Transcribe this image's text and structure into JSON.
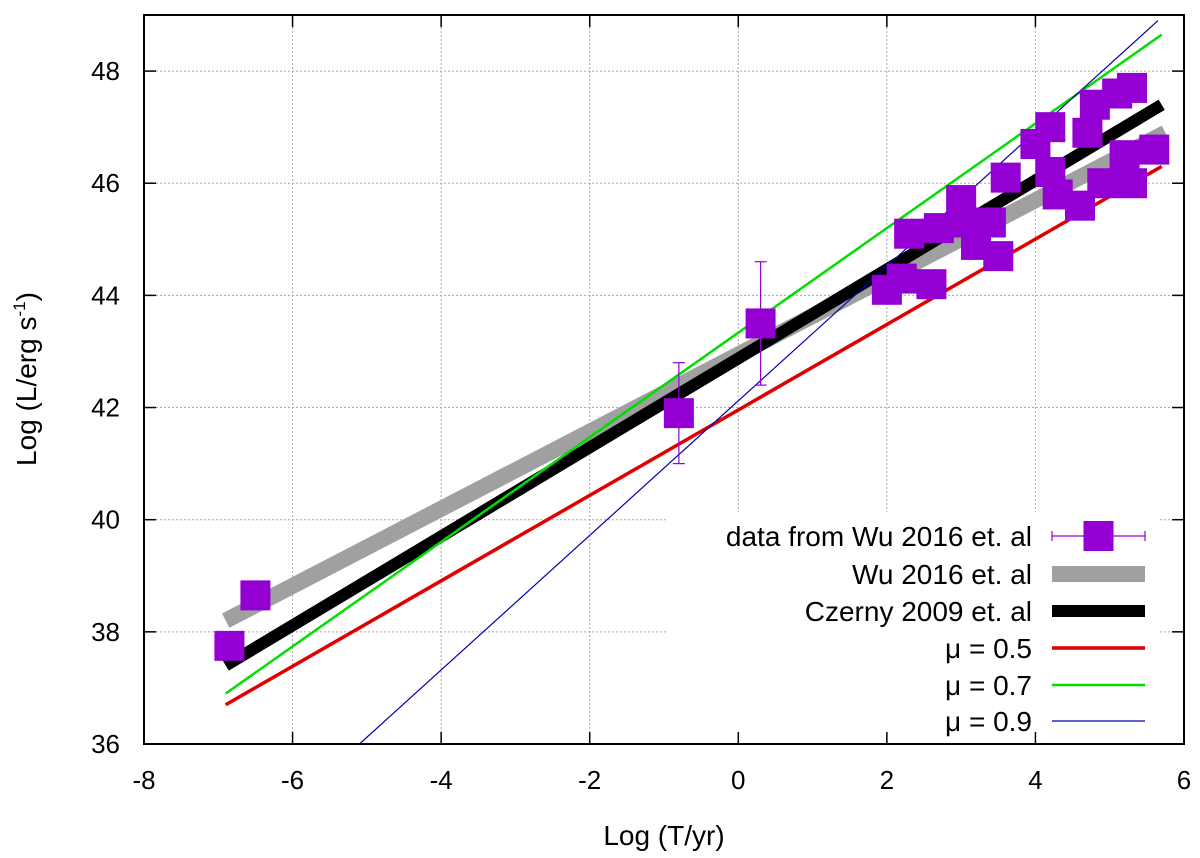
{
  "chart_data": {
    "type": "scatter",
    "title": "",
    "xlabel": "Log (T/yr)",
    "ylabel_parts": [
      "Log (L/erg s",
      "-1",
      ")"
    ],
    "xlim": [
      -8,
      6
    ],
    "ylim": [
      36,
      49
    ],
    "xticks": [
      -8,
      -6,
      -4,
      -2,
      0,
      2,
      4,
      6
    ],
    "yticks": [
      36,
      38,
      40,
      42,
      44,
      46,
      48
    ],
    "grid": true,
    "legend_position": "bottom-right",
    "scatter": {
      "name": "data from Wu 2016 et. al",
      "color": "#9400d3",
      "points": [
        {
          "x": -6.85,
          "y": 37.75
        },
        {
          "x": -6.5,
          "y": 38.65
        },
        {
          "x": -0.8,
          "y": 41.9,
          "yerr": [
            41.0,
            42.8
          ]
        },
        {
          "x": 0.3,
          "y": 43.5,
          "yerr": [
            42.4,
            44.6
          ]
        },
        {
          "x": 2.0,
          "y": 44.1
        },
        {
          "x": 2.2,
          "y": 44.3
        },
        {
          "x": 2.3,
          "y": 45.1
        },
        {
          "x": 2.6,
          "y": 44.2
        },
        {
          "x": 2.7,
          "y": 45.2
        },
        {
          "x": 3.0,
          "y": 45.7
        },
        {
          "x": 3.1,
          "y": 45.3
        },
        {
          "x": 3.2,
          "y": 44.9
        },
        {
          "x": 3.4,
          "y": 45.3
        },
        {
          "x": 3.5,
          "y": 44.7
        },
        {
          "x": 3.6,
          "y": 46.1
        },
        {
          "x": 4.0,
          "y": 46.7
        },
        {
          "x": 4.2,
          "y": 47.0
        },
        {
          "x": 4.2,
          "y": 46.2
        },
        {
          "x": 4.3,
          "y": 45.8
        },
        {
          "x": 4.6,
          "y": 45.6
        },
        {
          "x": 4.7,
          "y": 46.9
        },
        {
          "x": 4.8,
          "y": 47.4
        },
        {
          "x": 4.9,
          "y": 46.0
        },
        {
          "x": 5.1,
          "y": 47.6
        },
        {
          "x": 5.2,
          "y": 46.5
        },
        {
          "x": 5.3,
          "y": 47.7
        },
        {
          "x": 5.3,
          "y": 46.0
        },
        {
          "x": 5.6,
          "y": 46.6
        }
      ]
    },
    "lines": [
      {
        "name": "Wu 2016 et. al",
        "color": "#a0a0a0",
        "width": 16,
        "x": [
          -6.9,
          5.75
        ],
        "y": [
          38.2,
          46.9
        ]
      },
      {
        "name": "Czerny 2009 et. al",
        "color": "#000000",
        "width": 12,
        "x": [
          -6.9,
          5.7
        ],
        "y": [
          37.4,
          47.4
        ]
      },
      {
        "name": "μ = 0.5",
        "color": "#e00000",
        "width": 3.5,
        "x": [
          -6.9,
          5.7
        ],
        "y": [
          36.7,
          46.3
        ]
      },
      {
        "name": "μ = 0.7",
        "color": "#00dd00",
        "width": 2.5,
        "x": [
          -6.9,
          5.7
        ],
        "y": [
          36.9,
          48.65
        ]
      },
      {
        "name": "μ = 0.9",
        "color": "#0000b0",
        "width": 1.2,
        "x": [
          -5.1,
          5.65
        ],
        "y": [
          36.0,
          48.9
        ]
      }
    ]
  }
}
